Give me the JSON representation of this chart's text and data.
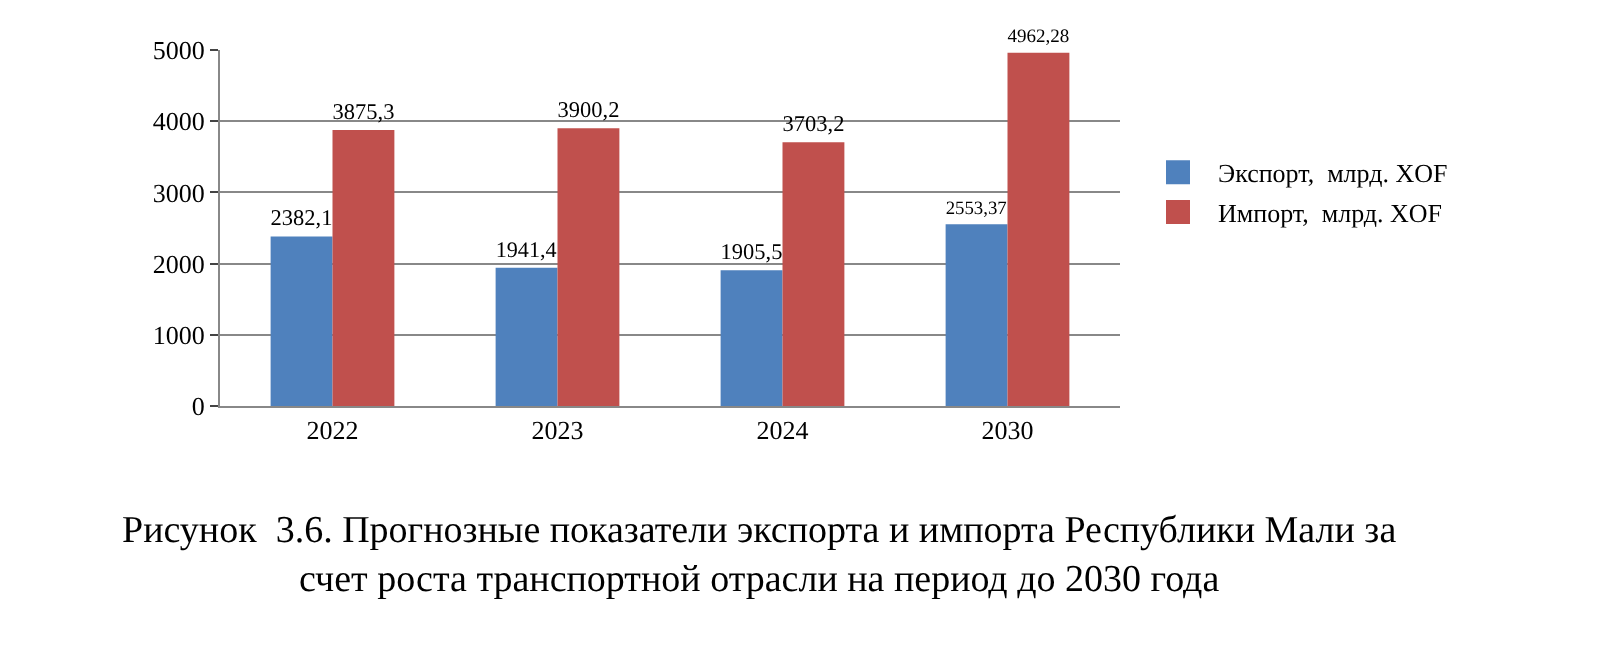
{
  "chart_data": {
    "type": "bar",
    "categories": [
      "2022",
      "2023",
      "2024",
      "2030"
    ],
    "series": [
      {
        "name": "Экспорт,  млрд. XOF",
        "color": "#4f81bd",
        "values": [
          2382.1,
          1941.4,
          1905.5,
          2553.37
        ],
        "value_labels": [
          "2382,1",
          "1941,4",
          "1905,5",
          "2553,37"
        ]
      },
      {
        "name": "Импорт,  млрд. XOF",
        "color": "#c0504d",
        "values": [
          3875.3,
          3900.2,
          3703.2,
          4962.28
        ],
        "value_labels": [
          "3875,3",
          "3900,2",
          "3703,2",
          "4962,28"
        ]
      }
    ],
    "ylim": [
      0,
      5000
    ],
    "yticks": [
      0,
      1000,
      2000,
      3000,
      4000,
      5000
    ],
    "grid": "y",
    "legend": "right",
    "annotations": [
      "Рисунок  3.6. Прогнозные показатели экспорта и импорта Республики Мали за\nсчет роста транспортной отрасли на период до 2030 года"
    ]
  }
}
